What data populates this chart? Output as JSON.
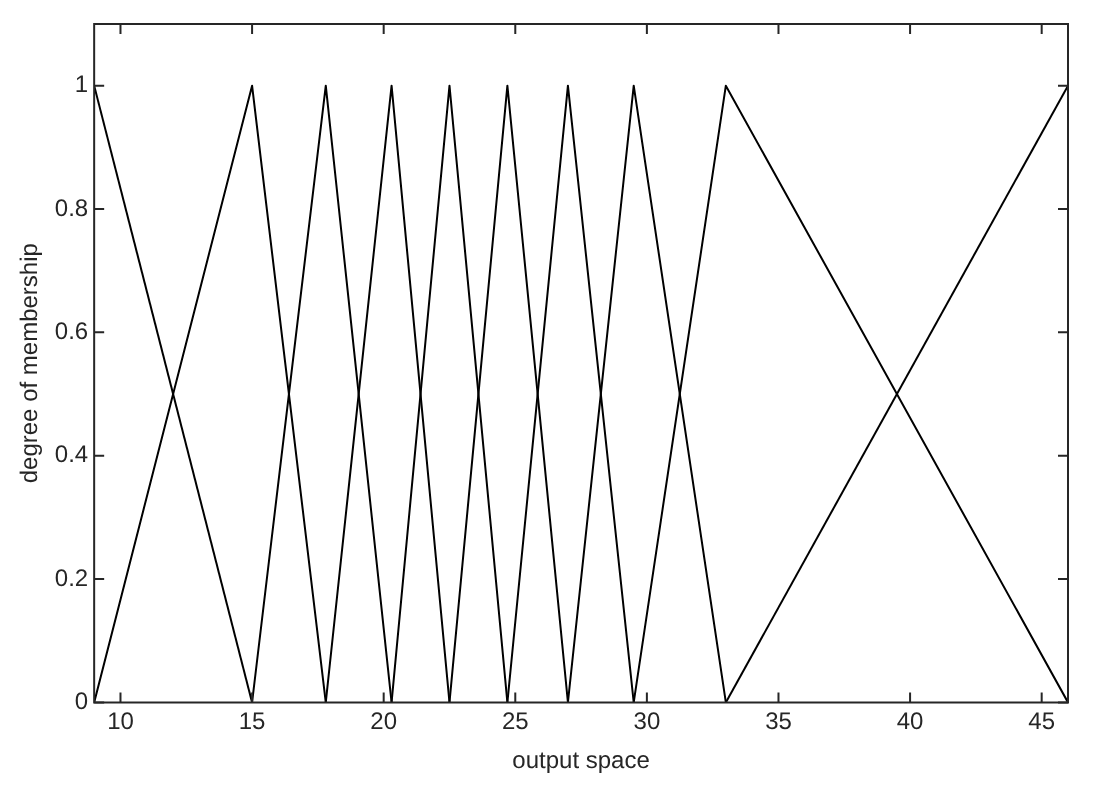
{
  "chart_data": {
    "type": "line",
    "xlabel": "output space",
    "ylabel": "degree of membership",
    "xlim": [
      9,
      46
    ],
    "xticks": [
      10,
      15,
      20,
      25,
      30,
      35,
      40,
      45
    ],
    "ylim": [
      0,
      1.1
    ],
    "yticks": [
      0,
      0.2,
      0.4,
      0.6,
      0.8,
      1
    ],
    "grid": false,
    "legend": false,
    "marker": "none",
    "line_style": "solid",
    "series": [
      {
        "color": "#000000",
        "x": [
          9,
          15
        ],
        "values": [
          1,
          0
        ]
      },
      {
        "color": "#000000",
        "x": [
          9,
          15,
          17.8
        ],
        "values": [
          0,
          1,
          0
        ]
      },
      {
        "color": "#000000",
        "x": [
          15,
          17.8,
          20.3
        ],
        "values": [
          0,
          1,
          0
        ]
      },
      {
        "color": "#000000",
        "x": [
          17.8,
          20.3,
          22.5
        ],
        "values": [
          0,
          1,
          0
        ]
      },
      {
        "color": "#000000",
        "x": [
          20.3,
          22.5,
          24.7
        ],
        "values": [
          0,
          1,
          0
        ]
      },
      {
        "color": "#000000",
        "x": [
          22.5,
          24.7,
          27
        ],
        "values": [
          0,
          1,
          0
        ]
      },
      {
        "color": "#000000",
        "x": [
          24.7,
          27,
          29.5
        ],
        "values": [
          0,
          1,
          0
        ]
      },
      {
        "color": "#000000",
        "x": [
          27,
          29.5,
          33
        ],
        "values": [
          0,
          1,
          0
        ]
      },
      {
        "color": "#000000",
        "x": [
          29.5,
          33,
          46
        ],
        "values": [
          0,
          1,
          0
        ]
      },
      {
        "color": "#000000",
        "x": [
          33,
          46
        ],
        "values": [
          0,
          1
        ]
      }
    ]
  }
}
